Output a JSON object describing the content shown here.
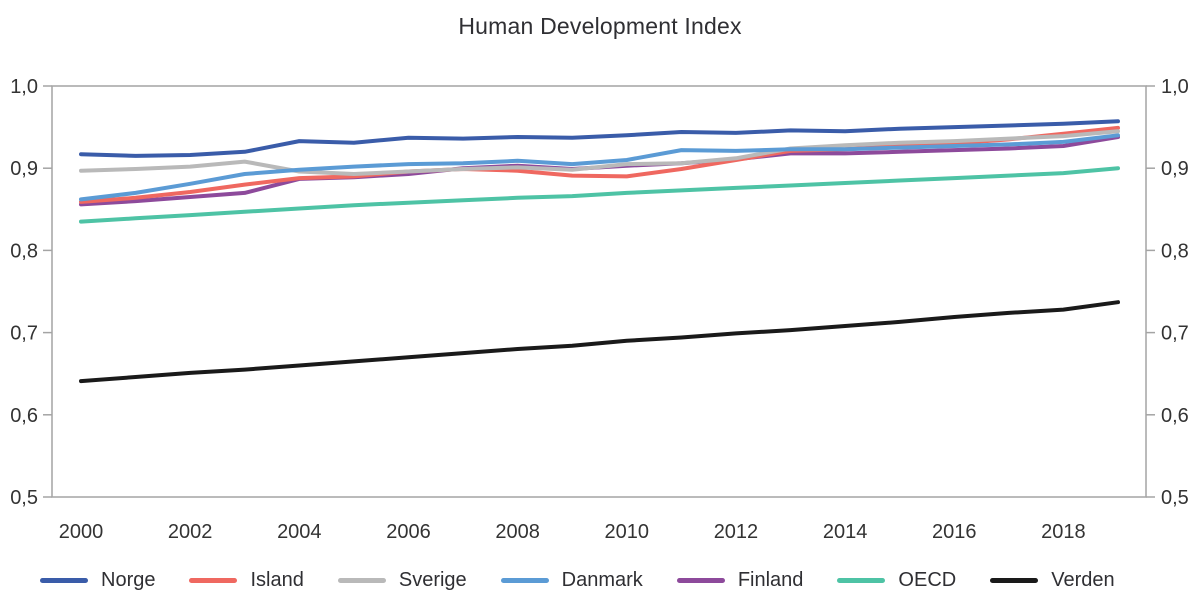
{
  "title": "Human Development Index",
  "chart_data": {
    "type": "line",
    "title": "Human Development Index",
    "xlabel": "",
    "ylabel": "",
    "xlim": [
      2000,
      2019
    ],
    "ylim": [
      0.5,
      1.0
    ],
    "grid": false,
    "legend_position": "bottom",
    "x_tick_labels": [
      "2000",
      "2002",
      "2004",
      "2006",
      "2008",
      "2010",
      "2012",
      "2014",
      "2016",
      "2018"
    ],
    "x_tick_values": [
      2000,
      2002,
      2004,
      2006,
      2008,
      2010,
      2012,
      2014,
      2016,
      2018
    ],
    "y_tick_labels": [
      "1,0",
      "0,9",
      "0,8",
      "0,7",
      "0,6",
      "0,5"
    ],
    "y_tick_values": [
      1.0,
      0.9,
      0.8,
      0.7,
      0.6,
      0.5
    ],
    "y_axis_sides": "both",
    "x": [
      2000,
      2001,
      2002,
      2003,
      2004,
      2005,
      2006,
      2007,
      2008,
      2009,
      2010,
      2011,
      2012,
      2013,
      2014,
      2015,
      2016,
      2017,
      2018,
      2019
    ],
    "series": [
      {
        "name": "Norge",
        "color": "#3a5ca9",
        "values": [
          0.917,
          0.915,
          0.916,
          0.92,
          0.933,
          0.931,
          0.937,
          0.936,
          0.938,
          0.937,
          0.94,
          0.944,
          0.943,
          0.946,
          0.945,
          0.948,
          0.95,
          0.952,
          0.954,
          0.957
        ]
      },
      {
        "name": "Island",
        "color": "#ef6860",
        "values": [
          0.859,
          0.864,
          0.871,
          0.88,
          0.888,
          0.89,
          0.896,
          0.899,
          0.897,
          0.891,
          0.89,
          0.899,
          0.91,
          0.921,
          0.923,
          0.927,
          0.93,
          0.935,
          0.942,
          0.949
        ]
      },
      {
        "name": "Sverige",
        "color": "#b9b9b9",
        "values": [
          0.897,
          0.899,
          0.902,
          0.908,
          0.896,
          0.893,
          0.896,
          0.899,
          0.901,
          0.898,
          0.905,
          0.906,
          0.912,
          0.924,
          0.928,
          0.931,
          0.933,
          0.936,
          0.939,
          0.945
        ]
      },
      {
        "name": "Danmark",
        "color": "#5b9bd5",
        "values": [
          0.862,
          0.87,
          0.881,
          0.893,
          0.898,
          0.902,
          0.905,
          0.906,
          0.909,
          0.905,
          0.91,
          0.922,
          0.921,
          0.923,
          0.923,
          0.925,
          0.927,
          0.929,
          0.932,
          0.94
        ]
      },
      {
        "name": "Finland",
        "color": "#8d4a9b",
        "values": [
          0.856,
          0.86,
          0.865,
          0.87,
          0.887,
          0.889,
          0.893,
          0.9,
          0.903,
          0.899,
          0.903,
          0.906,
          0.911,
          0.918,
          0.918,
          0.92,
          0.922,
          0.924,
          0.927,
          0.938
        ]
      },
      {
        "name": "OECD",
        "color": "#4ec3a5",
        "values": [
          0.835,
          0.839,
          0.843,
          0.847,
          0.851,
          0.855,
          0.858,
          0.861,
          0.864,
          0.866,
          0.87,
          0.873,
          0.876,
          0.879,
          0.882,
          0.885,
          0.888,
          0.891,
          0.894,
          0.9
        ]
      },
      {
        "name": "Verden",
        "color": "#1a1a1a",
        "values": [
          0.641,
          0.646,
          0.651,
          0.655,
          0.66,
          0.665,
          0.67,
          0.675,
          0.68,
          0.684,
          0.69,
          0.694,
          0.699,
          0.703,
          0.708,
          0.713,
          0.719,
          0.724,
          0.728,
          0.737
        ]
      }
    ]
  }
}
